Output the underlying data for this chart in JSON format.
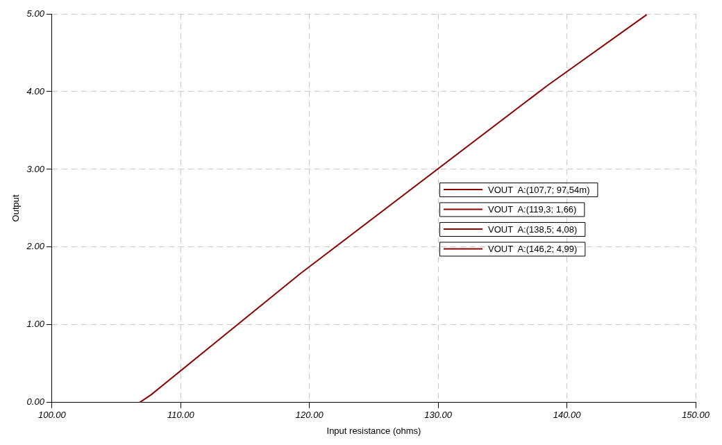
{
  "chart_data": {
    "type": "line",
    "xlabel": "Input resistance (ohms)",
    "ylabel": "Output",
    "x": [
      106.8,
      107.7,
      119.3,
      138.5,
      146.2
    ],
    "series": [
      {
        "color": "#8b0000",
        "values": [
          0,
          0.1,
          1.66,
          4.08,
          4.99
        ]
      }
    ],
    "xlim": [
      100,
      150
    ],
    "xticks": [
      {
        "value": 100,
        "label": "100.00"
      },
      {
        "value": 110,
        "label": "110.00"
      },
      {
        "value": 120,
        "label": "120.00"
      },
      {
        "value": 130,
        "label": "130.00"
      },
      {
        "value": 140,
        "label": "140.00"
      },
      {
        "value": 150,
        "label": "150.00"
      }
    ],
    "ylim": [
      0,
      5
    ],
    "yticks": [
      {
        "value": 0,
        "label": "0.00"
      },
      {
        "value": 1,
        "label": "1.00"
      },
      {
        "value": 2,
        "label": "2.00"
      },
      {
        "value": 3,
        "label": "3.00"
      },
      {
        "value": 4,
        "label": "4.00"
      },
      {
        "value": 5,
        "label": "5.00"
      }
    ],
    "grid": true,
    "legend": false,
    "marker": "none",
    "line_style": "solid",
    "annotations": [
      "VOUT  A:(107,7; 97,54m)",
      "VOUT  A:(119,3; 1,66)",
      "VOUT  A:(138,5; 4,08)",
      "VOUT  A:(146,2; 4,99)"
    ]
  }
}
